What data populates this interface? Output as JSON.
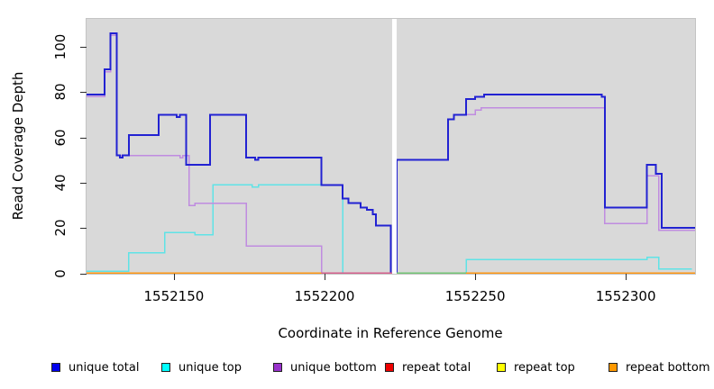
{
  "chart_data": {
    "type": "line",
    "subtype": "step-coverage",
    "title": "",
    "xlabel": "Coordinate in Reference Genome",
    "ylabel": "Read Coverage Depth",
    "xlim": [
      1552121,
      1552323
    ],
    "ylim": [
      0,
      112.5
    ],
    "grid": false,
    "plot_background": "#d9d9d9",
    "x_ticks": [
      {
        "value": 1552150,
        "label": "1552150"
      },
      {
        "value": 1552200,
        "label": "1552200"
      },
      {
        "value": 1552250,
        "label": "1552250"
      },
      {
        "value": 1552300,
        "label": "1552300"
      }
    ],
    "y_ticks": [
      {
        "value": 0,
        "label": "0"
      },
      {
        "value": 20,
        "label": "20"
      },
      {
        "value": 40,
        "label": "40"
      },
      {
        "value": 60,
        "label": "60"
      },
      {
        "value": 80,
        "label": "80"
      },
      {
        "value": 100,
        "label": "100"
      }
    ],
    "no_data_gap": {
      "from": 1552222.4,
      "to": 1552223.9
    },
    "series": [
      {
        "name": "unique top",
        "color": "#5fe3e6",
        "width": 1.5,
        "segments": [
          [
            [
              1552121,
              1
            ],
            [
              1552135,
              9
            ],
            [
              1552147,
              18
            ],
            [
              1552157,
              17
            ],
            [
              1552163,
              39
            ],
            [
              1552176,
              38
            ],
            [
              1552178,
              39
            ],
            [
              1552206,
              39
            ],
            [
              1552206,
              0
            ],
            [
              1552222,
              0
            ]
          ],
          [
            [
              1552247,
              0
            ],
            [
              1552247,
              6
            ],
            [
              1552307,
              7
            ],
            [
              1552311,
              2
            ],
            [
              1552322,
              2
            ]
          ]
        ]
      },
      {
        "name": "unique bottom",
        "color": "#c08ce0",
        "width": 1.5,
        "segments": [
          [
            [
              1552121,
              78
            ],
            [
              1552127,
              89
            ],
            [
              1552129,
              105
            ],
            [
              1552131,
              52
            ],
            [
              1552152,
              51
            ],
            [
              1552153,
              52
            ],
            [
              1552155,
              30
            ],
            [
              1552157,
              31
            ],
            [
              1552174,
              12
            ],
            [
              1552199,
              0
            ],
            [
              1552222,
              0
            ]
          ],
          [
            [
              1552224,
              0
            ],
            [
              1552224,
              50
            ],
            [
              1552241,
              68
            ],
            [
              1552243,
              70
            ],
            [
              1552250,
              72
            ],
            [
              1552252,
              73
            ],
            [
              1552293,
              22
            ],
            [
              1552307,
              43
            ],
            [
              1552311,
              19
            ],
            [
              1552323,
              19
            ]
          ]
        ]
      },
      {
        "name": "unique total",
        "color": "#2222d2",
        "width": 2,
        "segments": [
          [
            [
              1552121,
              79
            ],
            [
              1552127,
              90
            ],
            [
              1552129,
              106
            ],
            [
              1552131,
              52
            ],
            [
              1552132,
              51
            ],
            [
              1552133,
              52
            ],
            [
              1552135,
              61
            ],
            [
              1552145,
              70
            ],
            [
              1552151,
              69
            ],
            [
              1552152,
              70
            ],
            [
              1552154,
              48
            ],
            [
              1552162,
              70
            ],
            [
              1552174,
              51
            ],
            [
              1552177,
              50
            ],
            [
              1552178,
              51
            ],
            [
              1552199,
              39
            ],
            [
              1552206,
              33
            ],
            [
              1552208,
              31
            ],
            [
              1552212,
              29
            ],
            [
              1552214,
              28
            ],
            [
              1552216,
              26
            ],
            [
              1552217,
              21
            ],
            [
              1552222,
              21
            ],
            [
              1552222,
              0
            ]
          ],
          [
            [
              1552224,
              0
            ],
            [
              1552224,
              50
            ],
            [
              1552241,
              68
            ],
            [
              1552243,
              70
            ],
            [
              1552247,
              77
            ],
            [
              1552250,
              78
            ],
            [
              1552253,
              79
            ],
            [
              1552292,
              78
            ],
            [
              1552293,
              29
            ],
            [
              1552307,
              48
            ],
            [
              1552310,
              44
            ],
            [
              1552312,
              20
            ],
            [
              1552323,
              20
            ]
          ]
        ]
      }
    ],
    "baseline_segments": [
      {
        "series": "repeat bottom",
        "color": "#ff9712",
        "from": 1552121,
        "to": 1552199,
        "depth": 0
      },
      {
        "series": "repeat total",
        "color": "#d4608c",
        "from": 1552199,
        "to": 1552222.4,
        "depth": 0
      },
      {
        "series": "repeat top",
        "color": "#72c474",
        "from": 1552224,
        "to": 1552247,
        "depth": 0
      },
      {
        "series": "repeat bottom",
        "color": "#ff9712",
        "from": 1552247,
        "to": 1552323,
        "depth": 0
      }
    ],
    "legend": {
      "position": "bottom",
      "items": [
        {
          "label": "unique total",
          "swatch": "#0000ee"
        },
        {
          "label": "unique top",
          "swatch": "#00ffff"
        },
        {
          "label": "unique bottom",
          "swatch": "#9932cc"
        },
        {
          "label": "repeat total",
          "swatch": "#ee0000"
        },
        {
          "label": "repeat top",
          "swatch": "#ffff00"
        },
        {
          "label": "repeat bottom",
          "swatch": "#ff9900"
        }
      ]
    }
  }
}
